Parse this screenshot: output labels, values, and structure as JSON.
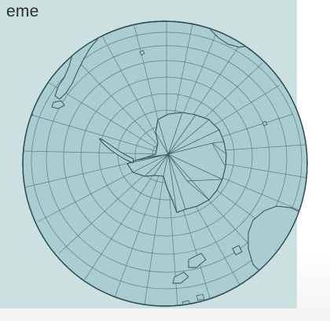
{
  "caption": {
    "text": "eme"
  },
  "map": {
    "projection": "orthographic-south-polar",
    "graticule": true,
    "ocean_color": "#a9cdd0",
    "land_color": "#a9cdd0",
    "outline_color": "#2f4f56",
    "graticule_color": "#557278",
    "panel_color": "#cce0df"
  }
}
